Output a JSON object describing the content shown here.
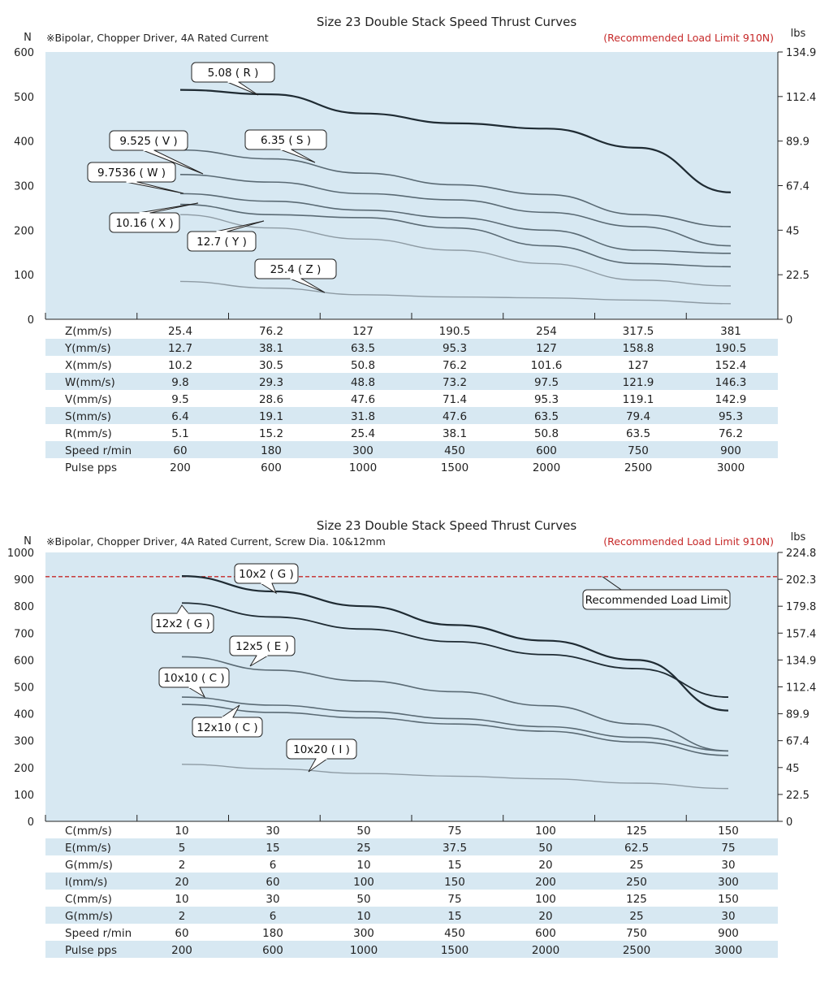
{
  "colors": {
    "plot_bg": "#d7e8f2",
    "band": "#d7e8f2",
    "recommended": "#c62828",
    "dark": "#1f2b33",
    "mid": "#5a6a74",
    "light": "#8e9ba4"
  },
  "chart_data": [
    {
      "type": "line",
      "title": "Size 23 Double Stack Speed Thrust Curves",
      "note": "※Bipolar, Chopper Driver, 4A Rated Current",
      "recommended_text": "(Recommended Load Limit 910N)",
      "ylabel_left": "N",
      "ylabel_right": "lbs",
      "ylim": [
        0,
        600
      ],
      "y_ticks": [
        "0",
        "100",
        "200",
        "300",
        "400",
        "500",
        "600"
      ],
      "y2_ticks": [
        "0",
        "22.5",
        "45",
        "67.4",
        "89.9",
        "112.4",
        "134.9"
      ],
      "x_points": 7,
      "series": [
        {
          "name": "5.08 ( R )",
          "color": "dark",
          "values": [
            515,
            505,
            462,
            440,
            428,
            385,
            285
          ]
        },
        {
          "name": "6.35 ( S )",
          "color": "mid",
          "values": [
            380,
            360,
            328,
            302,
            280,
            235,
            208
          ]
        },
        {
          "name": "9.525 ( V )",
          "color": "mid",
          "values": [
            325,
            308,
            282,
            268,
            240,
            208,
            165
          ]
        },
        {
          "name": "9.7536 ( W )",
          "color": "mid",
          "values": [
            282,
            265,
            245,
            228,
            200,
            155,
            148
          ]
        },
        {
          "name": "10.16 ( X )",
          "color": "mid",
          "values": [
            258,
            235,
            228,
            205,
            165,
            125,
            118
          ]
        },
        {
          "name": "12.7 ( Y )",
          "color": "light",
          "values": [
            235,
            205,
            180,
            155,
            125,
            88,
            75
          ]
        },
        {
          "name": "25.4 ( Z )",
          "color": "light",
          "values": [
            85,
            70,
            55,
            50,
            48,
            43,
            35
          ]
        }
      ],
      "callouts": [
        "5.08 ( R )",
        "6.35 ( S )",
        "9.525 ( V )",
        "9.7536 ( W )",
        "10.16 ( X )",
        "12.7 ( Y )",
        "25.4 ( Z )"
      ],
      "table": [
        {
          "label": "Z(mm/s)",
          "values": [
            "25.4",
            "76.2",
            "127",
            "190.5",
            "254",
            "317.5",
            "381"
          ]
        },
        {
          "label": "Y(mm/s)",
          "values": [
            "12.7",
            "38.1",
            "63.5",
            "95.3",
            "127",
            "158.8",
            "190.5"
          ]
        },
        {
          "label": "X(mm/s)",
          "values": [
            "10.2",
            "30.5",
            "50.8",
            "76.2",
            "101.6",
            "127",
            "152.4"
          ]
        },
        {
          "label": "W(mm/s)",
          "values": [
            "9.8",
            "29.3",
            "48.8",
            "73.2",
            "97.5",
            "121.9",
            "146.3"
          ]
        },
        {
          "label": "V(mm/s)",
          "values": [
            "9.5",
            "28.6",
            "47.6",
            "71.4",
            "95.3",
            "119.1",
            "142.9"
          ]
        },
        {
          "label": "S(mm/s)",
          "values": [
            "6.4",
            "19.1",
            "31.8",
            "47.6",
            "63.5",
            "79.4",
            "95.3"
          ]
        },
        {
          "label": "R(mm/s)",
          "values": [
            "5.1",
            "15.2",
            "25.4",
            "38.1",
            "50.8",
            "63.5",
            "76.2"
          ]
        },
        {
          "label": "Speed r/min",
          "values": [
            "60",
            "180",
            "300",
            "450",
            "600",
            "750",
            "900"
          ]
        },
        {
          "label": "Pulse  pps",
          "values": [
            "200",
            "600",
            "1000",
            "1500",
            "2000",
            "2500",
            "3000"
          ]
        }
      ]
    },
    {
      "type": "line",
      "title": "Size 23 Double Stack Speed Thrust Curves",
      "note": "※Bipolar, Chopper Driver, 4A Rated Current, Screw Dia. 10&12mm",
      "recommended_text": "(Recommended Load Limit 910N)",
      "recommended_value": 910,
      "recommended_callout": "Recommended Load Limit",
      "ylabel_left": "N",
      "ylabel_right": "lbs",
      "ylim": [
        0,
        1000
      ],
      "y_ticks": [
        "0",
        "100",
        "200",
        "300",
        "400",
        "500",
        "600",
        "700",
        "800",
        "900",
        "1000"
      ],
      "y2_ticks": [
        "0",
        "22.5",
        "45",
        "67.4",
        "89.9",
        "112.4",
        "134.9",
        "157.4",
        "179.8",
        "202.3",
        "224.8"
      ],
      "x_points": 7,
      "series": [
        {
          "name": "10x2 ( G )",
          "color": "dark",
          "values": [
            912,
            855,
            800,
            730,
            672,
            600,
            412
          ]
        },
        {
          "name": "12x2 ( G )",
          "color": "dark",
          "values": [
            812,
            760,
            715,
            668,
            620,
            568,
            462
          ]
        },
        {
          "name": "12x5 ( E )",
          "color": "mid",
          "values": [
            612,
            562,
            522,
            482,
            430,
            362,
            262
          ]
        },
        {
          "name": "10x10 ( C )",
          "color": "mid",
          "values": [
            462,
            432,
            408,
            382,
            352,
            312,
            262
          ]
        },
        {
          "name": "12x10 ( C )",
          "color": "mid",
          "values": [
            435,
            405,
            385,
            362,
            335,
            295,
            245
          ]
        },
        {
          "name": "10x20 ( I )",
          "color": "light",
          "values": [
            212,
            195,
            178,
            168,
            158,
            142,
            122
          ]
        }
      ],
      "callouts": [
        "10x2 ( G )",
        "12x2 ( G )",
        "12x5 ( E )",
        "10x10 ( C )",
        "12x10 ( C )",
        "10x20 ( I )"
      ],
      "table": [
        {
          "label": "C(mm/s)",
          "values": [
            "10",
            "30",
            "50",
            "75",
            "100",
            "125",
            "150"
          ]
        },
        {
          "label": "E(mm/s)",
          "values": [
            "5",
            "15",
            "25",
            "37.5",
            "50",
            "62.5",
            "75"
          ]
        },
        {
          "label": "G(mm/s)",
          "values": [
            "2",
            "6",
            "10",
            "15",
            "20",
            "25",
            "30"
          ]
        },
        {
          "label": "I(mm/s)",
          "values": [
            "20",
            "60",
            "100",
            "150",
            "200",
            "250",
            "300"
          ]
        },
        {
          "label": "C(mm/s)",
          "values": [
            "10",
            "30",
            "50",
            "75",
            "100",
            "125",
            "150"
          ]
        },
        {
          "label": "G(mm/s)",
          "values": [
            "2",
            "6",
            "10",
            "15",
            "20",
            "25",
            "30"
          ]
        },
        {
          "label": "Speed r/min",
          "values": [
            "60",
            "180",
            "300",
            "450",
            "600",
            "750",
            "900"
          ]
        },
        {
          "label": "Pulse  pps",
          "values": [
            "200",
            "600",
            "1000",
            "1500",
            "2000",
            "2500",
            "3000"
          ]
        }
      ]
    }
  ]
}
